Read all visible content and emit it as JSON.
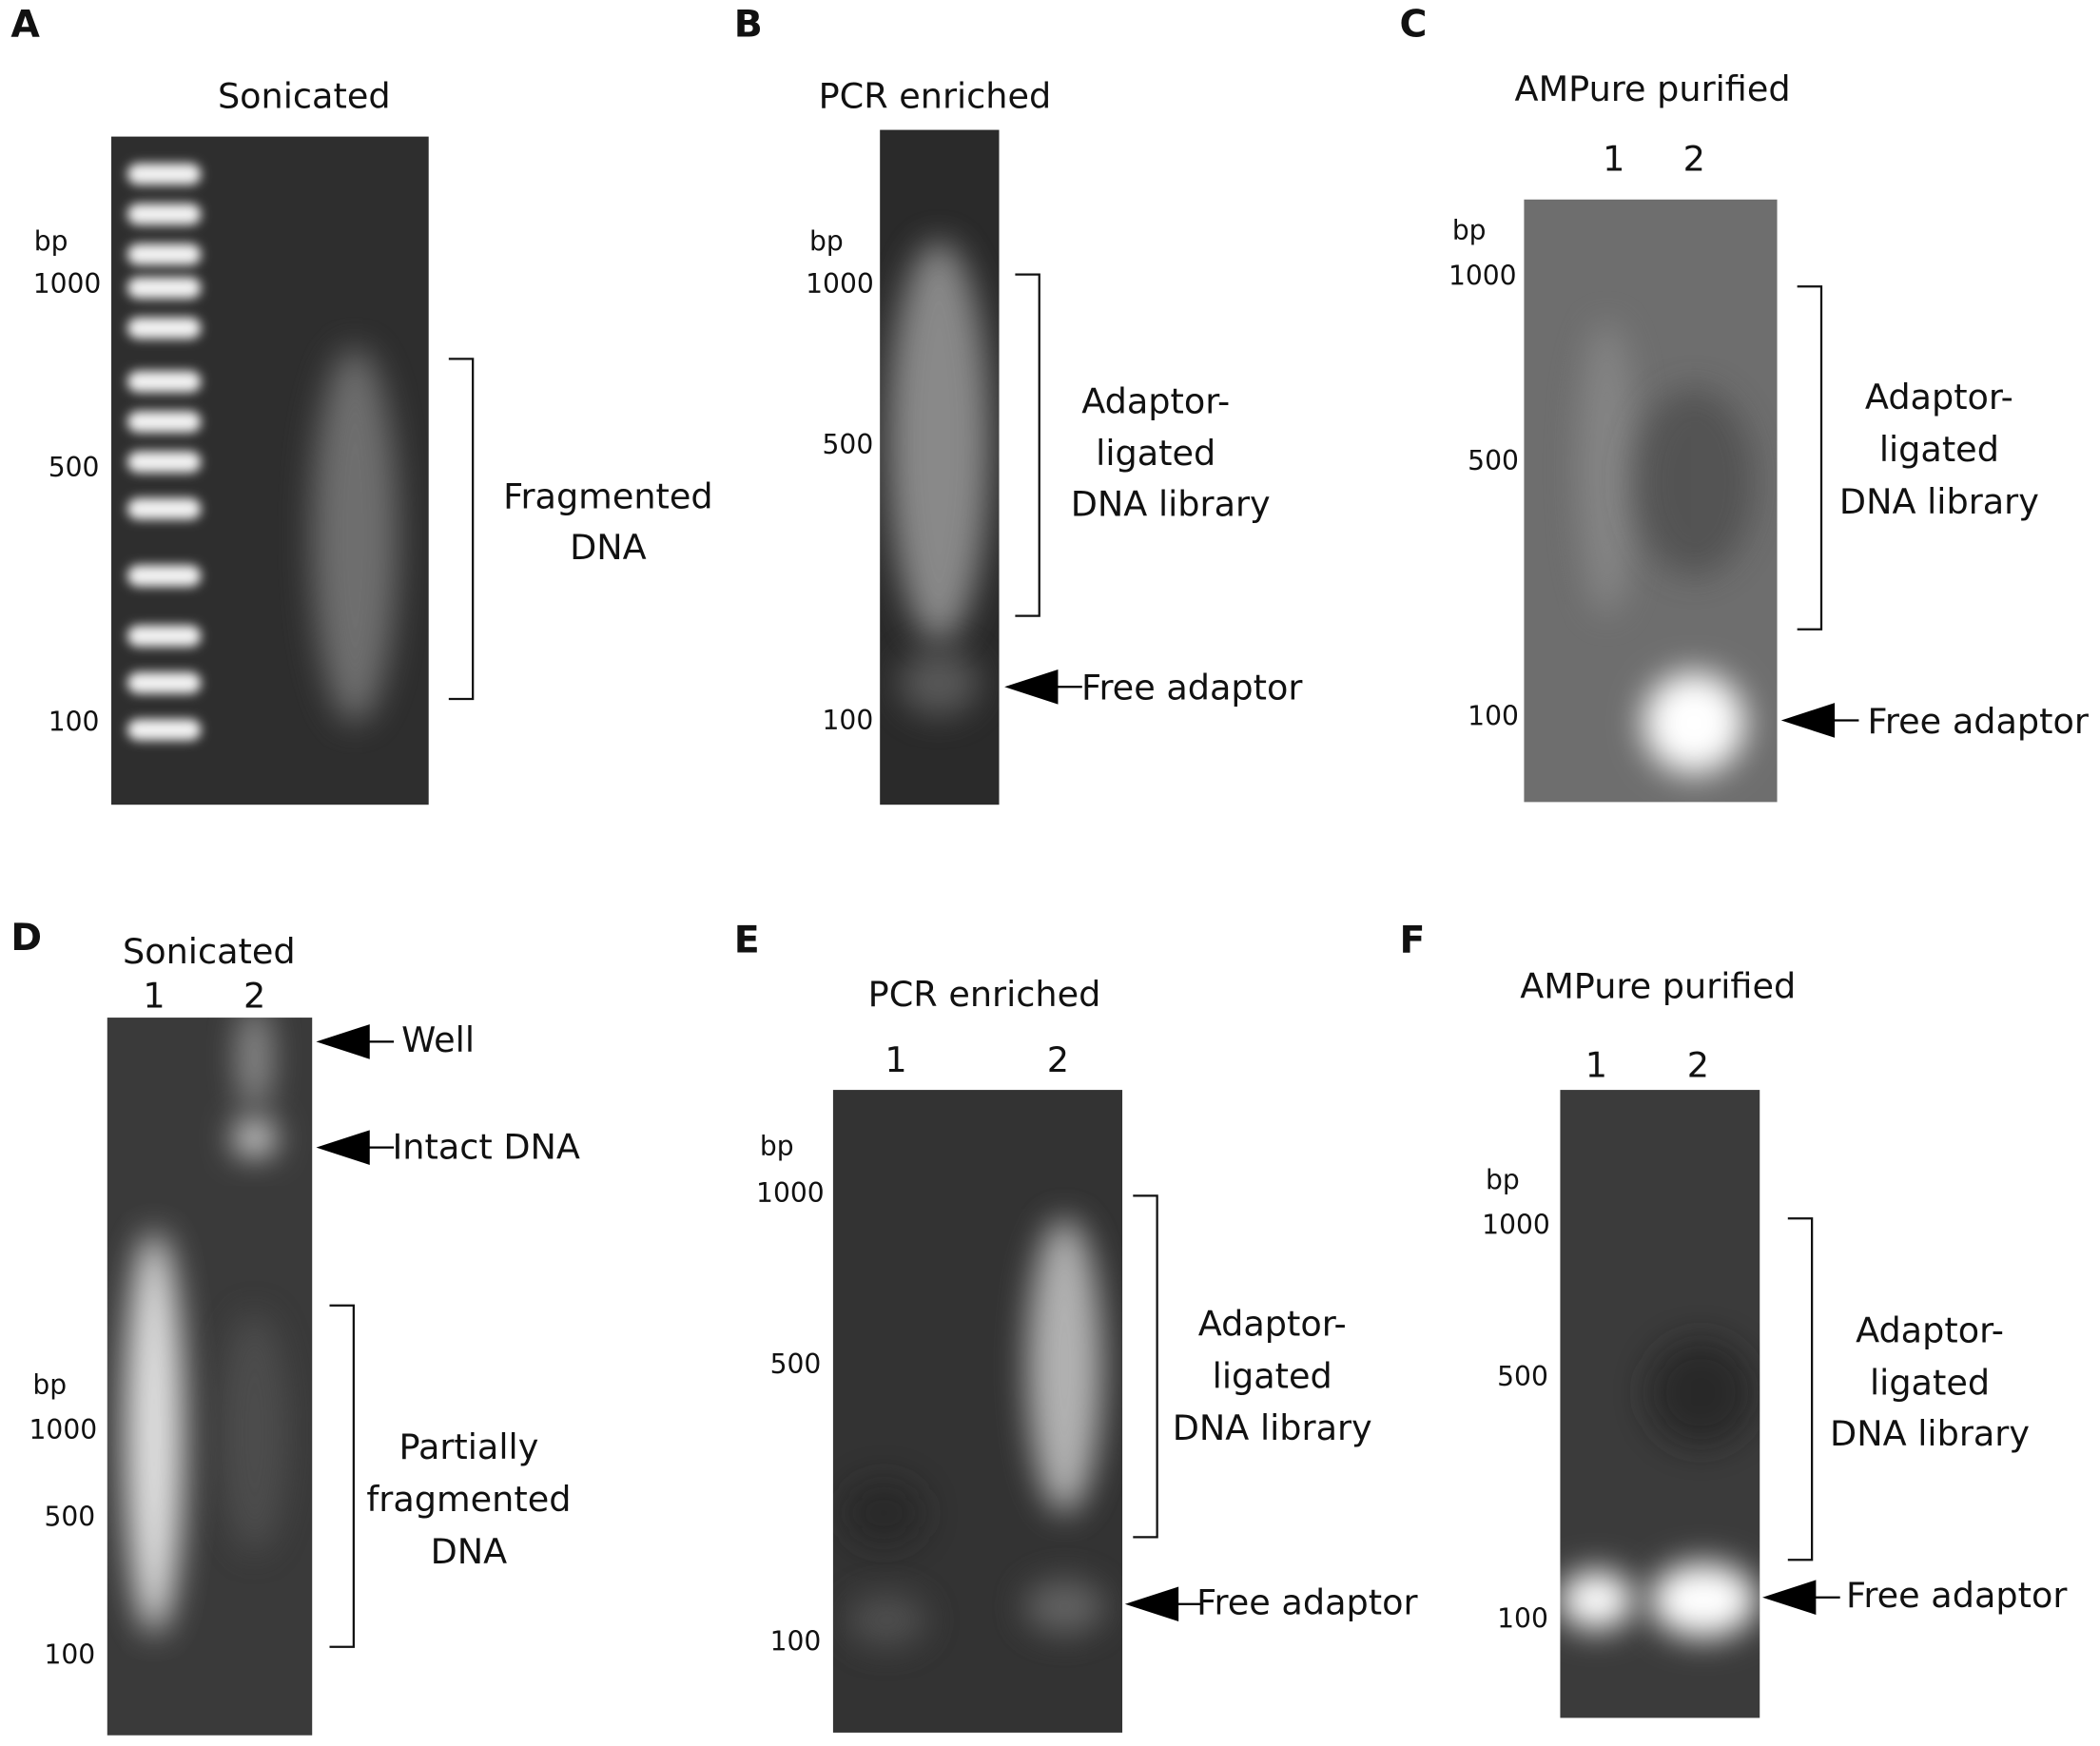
{
  "panels": [
    {
      "letter": "A",
      "title": "Sonicated",
      "lanes": [],
      "bp_label": "bp",
      "markers": [
        "1000",
        "500",
        "100"
      ],
      "bracket_text": [
        "Fragmented",
        "DNA"
      ],
      "arrows": []
    },
    {
      "letter": "B",
      "title": "PCR enriched",
      "lanes": [],
      "bp_label": "bp",
      "markers": [
        "1000",
        "500",
        "100"
      ],
      "bracket_text": [
        "Adaptor-",
        "ligated",
        "DNA library"
      ],
      "arrows": [
        "Free adaptor"
      ]
    },
    {
      "letter": "C",
      "title": "AMPure purified",
      "lanes": [
        "1",
        "2"
      ],
      "bp_label": "bp",
      "markers": [
        "1000",
        "500",
        "100"
      ],
      "bracket_text": [
        "Adaptor-",
        "ligated",
        "DNA library"
      ],
      "arrows": [
        "Free adaptor"
      ]
    },
    {
      "letter": "D",
      "title": "Sonicated",
      "lanes": [
        "1",
        "2"
      ],
      "bp_label": "bp",
      "markers": [
        "1000",
        "500",
        "100"
      ],
      "bracket_text": [
        "Partially",
        "fragmented",
        "DNA"
      ],
      "arrows": [
        "Well",
        "Intact DNA"
      ]
    },
    {
      "letter": "E",
      "title": "PCR enriched",
      "lanes": [
        "1",
        "2"
      ],
      "bp_label": "bp",
      "markers": [
        "1000",
        "500",
        "100"
      ],
      "bracket_text": [
        "Adaptor-",
        "ligated",
        "DNA library"
      ],
      "arrows": [
        "Free adaptor"
      ]
    },
    {
      "letter": "F",
      "title": "AMPure purified",
      "lanes": [
        "1",
        "2"
      ],
      "bp_label": "bp",
      "markers": [
        "1000",
        "500",
        "100"
      ],
      "bracket_text": [
        "Adaptor-",
        "ligated",
        "DNA library"
      ],
      "arrows": [
        "Free adaptor"
      ]
    }
  ]
}
